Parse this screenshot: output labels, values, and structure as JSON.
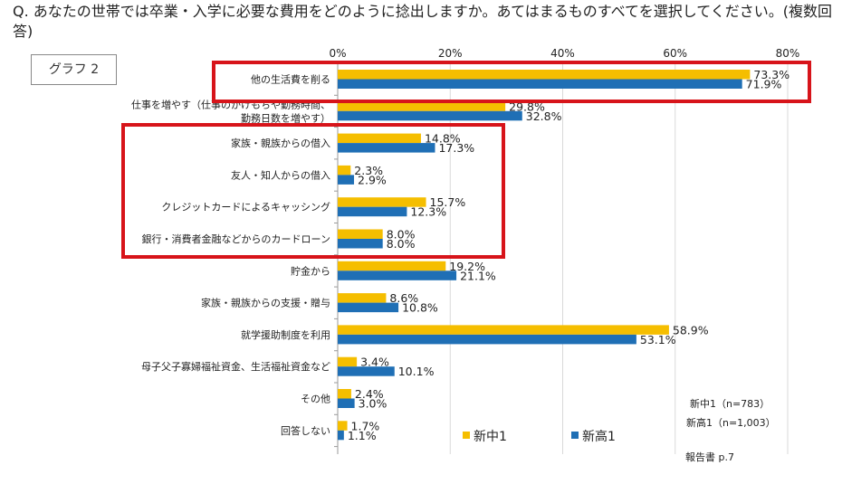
{
  "question": "Q. あなたの世帯では卒業・入学に必要な費用をどのように捻出しますか。あてはまるものすべてを選択してください。(複数回答)",
  "graph_label": "グラフ 2",
  "sample_sizes": [
    "新中1（n=783）",
    "新高1（n=1,003）"
  ],
  "report_ref": "報告書 p.7",
  "colors": {
    "series1": "#F5BE00",
    "series2": "#1F6FB5",
    "highlight": "#D7141A",
    "grid": "#D9D9D9",
    "axis": "#9A9A9A"
  },
  "chart_data": {
    "type": "bar",
    "orientation": "horizontal",
    "categories": [
      [
        "他の生活費を削る"
      ],
      [
        "仕事を増やす（仕事のかけもちや勤務時間、",
        "勤務日数を増やす）"
      ],
      [
        "家族・親族からの借入"
      ],
      [
        "友人・知人からの借入"
      ],
      [
        "クレジットカードによるキャッシング"
      ],
      [
        "銀行・消費者金融などからのカードローン"
      ],
      [
        "貯金から"
      ],
      [
        "家族・親族からの支援・贈与"
      ],
      [
        "就学援助制度を利用"
      ],
      [
        "母子父子寡婦福祉資金、生活福祉資金など"
      ],
      [
        "その他"
      ],
      [
        "回答しない"
      ]
    ],
    "series": [
      {
        "name": "新中1",
        "values": [
          73.3,
          29.8,
          14.8,
          2.3,
          15.7,
          8.0,
          19.2,
          8.6,
          58.9,
          3.4,
          2.4,
          1.7
        ]
      },
      {
        "name": "新高1",
        "values": [
          71.9,
          32.8,
          17.3,
          2.9,
          12.3,
          8.0,
          21.1,
          10.8,
          53.1,
          10.1,
          3.0,
          1.1
        ]
      }
    ],
    "x_ticks": [
      "0%",
      "20%",
      "40%",
      "60%",
      "80%"
    ],
    "xlim": [
      0,
      80
    ],
    "unit": "%",
    "highlight_groups": [
      [
        0,
        0
      ],
      [
        2,
        5
      ]
    ],
    "legend": "bottom"
  }
}
